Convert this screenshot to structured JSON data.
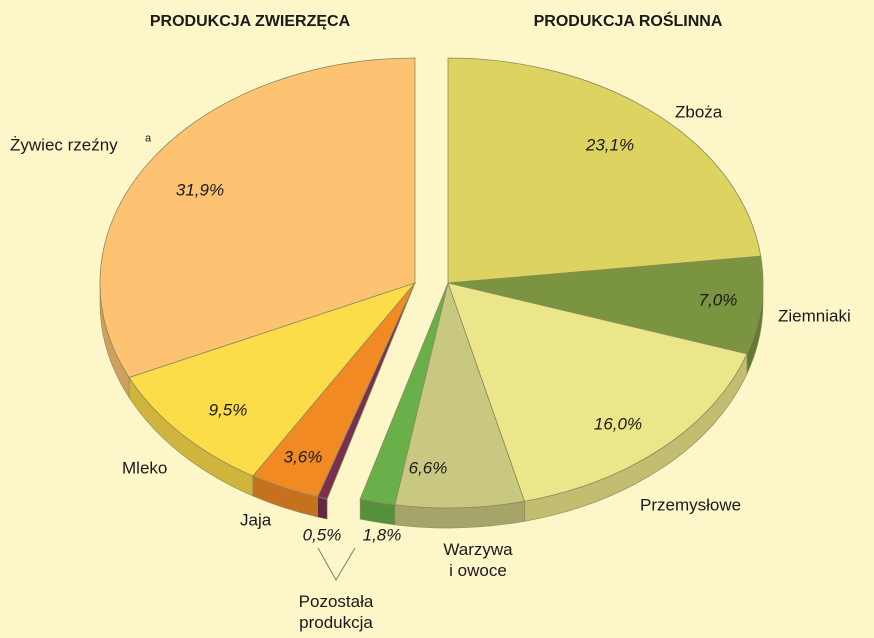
{
  "chart_data": {
    "type": "pie",
    "groups": [
      {
        "title": "PRODUKCJA ZWIERZĘCA",
        "categories": [
          "Żywiec rzeźny",
          "Mleko",
          "Jaja",
          null
        ],
        "values": [
          31.9,
          9.5,
          3.6,
          0.5
        ],
        "value_labels": [
          "31,9%",
          "9,5%",
          "3,6%",
          "0,5%"
        ],
        "colors": [
          "#fdc373",
          "#fddc4a",
          "#f28a24",
          "#7a2f4e"
        ]
      },
      {
        "title": "PRODUKCJA ROŚLINNA",
        "categories": [
          "Zboża",
          "Ziemniaki",
          "Przemysłowe",
          "Warzywa\ni owoce",
          null
        ],
        "values": [
          23.1,
          7.0,
          16.0,
          6.6,
          1.8
        ],
        "value_labels": [
          "23,1%",
          "7,0%",
          "16,0%",
          "6,6%",
          "1,8%"
        ],
        "colors": [
          "#dcd360",
          "#7a9440",
          "#ece68a",
          "#c9c880",
          "#6ab04a"
        ]
      }
    ],
    "annotations": [
      "a",
      "Pozostała\nprodukcja"
    ]
  }
}
